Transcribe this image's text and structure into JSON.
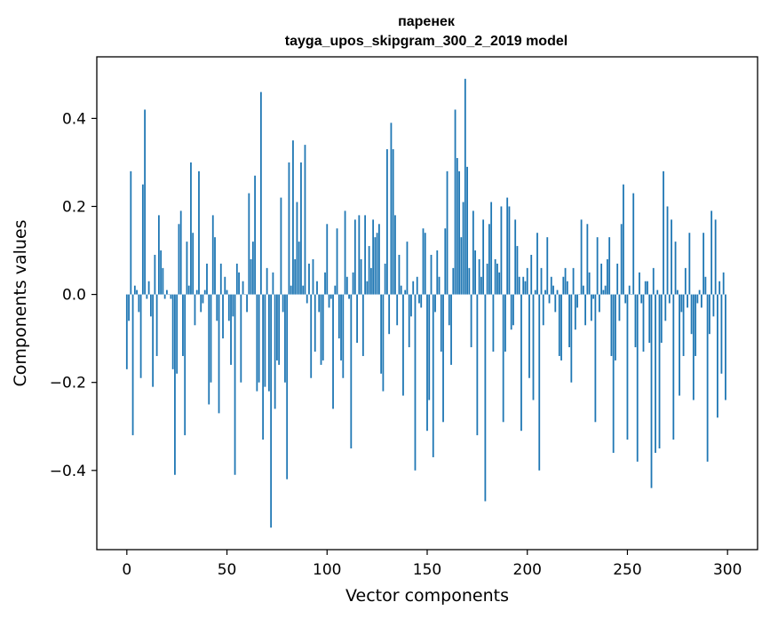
{
  "chart_data": {
    "type": "bar",
    "title_line1": "паренек",
    "title_line2": "tayga_upos_skipgram_300_2_2019 model",
    "xlabel": "Vector components",
    "ylabel": "Components values",
    "xlim": [
      -15,
      315
    ],
    "ylim": [
      -0.58,
      0.54
    ],
    "xticks": [
      0,
      50,
      100,
      150,
      200,
      250,
      300
    ],
    "xtick_labels": [
      "0",
      "50",
      "100",
      "150",
      "200",
      "250",
      "300"
    ],
    "yticks": [
      -0.4,
      -0.2,
      0.0,
      0.2,
      0.4
    ],
    "ytick_labels": [
      "−0.4",
      "−0.2",
      "0.0",
      "0.2",
      "0.4"
    ],
    "bar_color": "#1f77b4",
    "grid": false,
    "values": [
      -0.17,
      -0.06,
      0.28,
      -0.32,
      0.02,
      0.01,
      -0.04,
      -0.19,
      0.25,
      0.42,
      -0.01,
      0.03,
      -0.05,
      -0.21,
      0.09,
      -0.14,
      0.18,
      0.1,
      0.06,
      -0.01,
      0.01,
      0.0,
      -0.01,
      -0.17,
      -0.41,
      -0.18,
      0.16,
      0.19,
      -0.14,
      -0.32,
      0.12,
      0.02,
      0.3,
      0.14,
      -0.07,
      0.01,
      0.28,
      -0.04,
      -0.02,
      0.01,
      0.07,
      -0.25,
      -0.2,
      0.18,
      0.13,
      -0.06,
      -0.27,
      0.07,
      -0.1,
      0.04,
      0.01,
      -0.06,
      -0.16,
      -0.05,
      -0.41,
      0.07,
      0.05,
      -0.2,
      0.03,
      0.0,
      -0.04,
      0.23,
      0.08,
      0.12,
      0.27,
      -0.22,
      -0.2,
      0.46,
      -0.33,
      -0.21,
      0.06,
      -0.22,
      -0.53,
      0.05,
      -0.26,
      -0.15,
      -0.16,
      0.22,
      -0.04,
      -0.2,
      -0.42,
      0.3,
      0.02,
      0.35,
      0.08,
      0.21,
      0.12,
      0.3,
      0.02,
      0.34,
      -0.02,
      0.07,
      -0.19,
      0.08,
      -0.13,
      0.03,
      -0.04,
      -0.16,
      -0.15,
      0.05,
      0.16,
      -0.03,
      -0.01,
      -0.26,
      0.02,
      0.15,
      -0.1,
      -0.15,
      -0.19,
      0.19,
      0.04,
      -0.01,
      -0.35,
      0.05,
      0.17,
      -0.11,
      0.18,
      0.08,
      -0.14,
      0.18,
      0.03,
      0.11,
      0.06,
      0.17,
      0.13,
      0.14,
      0.16,
      -0.18,
      -0.22,
      0.07,
      0.33,
      -0.09,
      0.39,
      0.33,
      0.18,
      -0.07,
      0.09,
      0.02,
      -0.23,
      0.01,
      0.12,
      -0.12,
      -0.05,
      0.03,
      -0.4,
      0.04,
      -0.02,
      -0.03,
      0.15,
      0.14,
      -0.31,
      -0.24,
      0.09,
      -0.37,
      -0.04,
      0.1,
      0.04,
      -0.13,
      -0.29,
      0.15,
      0.28,
      -0.07,
      -0.16,
      0.06,
      0.42,
      0.31,
      0.28,
      0.13,
      0.21,
      0.49,
      0.29,
      0.06,
      -0.12,
      0.19,
      0.1,
      -0.32,
      0.08,
      0.04,
      0.17,
      -0.47,
      0.07,
      0.16,
      0.21,
      -0.13,
      0.08,
      0.07,
      0.05,
      0.2,
      -0.29,
      -0.13,
      0.22,
      0.2,
      -0.08,
      -0.07,
      0.17,
      0.11,
      0.04,
      -0.31,
      0.04,
      0.03,
      0.06,
      -0.19,
      0.09,
      -0.24,
      0.01,
      0.14,
      -0.4,
      0.06,
      -0.07,
      0.01,
      0.13,
      -0.02,
      0.04,
      0.02,
      -0.04,
      0.01,
      -0.14,
      -0.15,
      0.04,
      0.06,
      0.03,
      -0.12,
      -0.2,
      0.06,
      -0.08,
      -0.03,
      0.0,
      0.17,
      0.02,
      -0.07,
      0.16,
      0.05,
      -0.06,
      -0.01,
      -0.29,
      0.13,
      -0.04,
      0.07,
      0.01,
      0.02,
      0.08,
      0.13,
      -0.14,
      -0.36,
      -0.15,
      0.07,
      -0.06,
      0.16,
      0.25,
      -0.02,
      -0.33,
      0.02,
      0.0,
      0.23,
      -0.12,
      -0.38,
      0.05,
      -0.02,
      -0.13,
      0.03,
      0.03,
      -0.11,
      -0.44,
      0.06,
      -0.36,
      0.01,
      -0.35,
      -0.11,
      0.28,
      -0.06,
      0.2,
      -0.02,
      0.17,
      -0.33,
      0.12,
      0.01,
      -0.23,
      -0.04,
      -0.14,
      0.06,
      -0.03,
      0.14,
      -0.09,
      -0.24,
      -0.14,
      -0.02,
      0.01,
      -0.03,
      0.14,
      0.04,
      -0.38,
      -0.09,
      0.19,
      -0.05,
      0.17,
      -0.28,
      0.03,
      -0.18,
      0.05,
      -0.24
    ]
  }
}
